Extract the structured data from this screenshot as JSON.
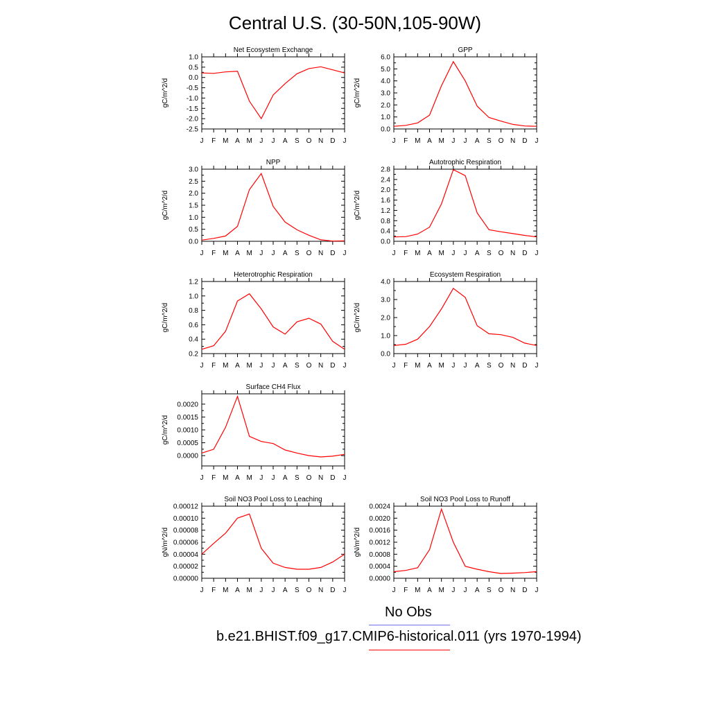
{
  "title": "Central U.S. (30-50N,105-90W)",
  "months": [
    "J",
    "F",
    "M",
    "A",
    "M",
    "J",
    "J",
    "A",
    "S",
    "O",
    "N",
    "D",
    "J"
  ],
  "legend": [
    {
      "label": "No Obs",
      "color": "#6f6ff0"
    },
    {
      "label": "b.e21.BHIST.f09_g17.CMIP6-historical.011 (yrs 1970-1994)",
      "color": "#ff0000"
    }
  ],
  "chart_data": [
    {
      "type": "line",
      "title": "Net Ecosystem Exchange",
      "ylabel": "gC/m^2/d",
      "ylim": [
        -2.5,
        1.0
      ],
      "yticks": [
        "1.0",
        "0.5",
        "0.0",
        "-0.5",
        "-1.0",
        "-1.5",
        "-2.0",
        "-2.5"
      ],
      "series": [
        {
          "color": "#ff0000",
          "values": [
            0.22,
            0.2,
            0.27,
            0.3,
            -1.15,
            -2.0,
            -0.85,
            -0.3,
            0.18,
            0.43,
            0.52,
            0.37,
            0.22
          ]
        }
      ]
    },
    {
      "type": "line",
      "title": "GPP",
      "ylabel": "gC/m^2/d",
      "ylim": [
        0,
        6.0
      ],
      "yticks": [
        "6.0",
        "5.0",
        "4.0",
        "3.0",
        "2.0",
        "1.0",
        "0.0"
      ],
      "series": [
        {
          "color": "#ff0000",
          "values": [
            0.22,
            0.3,
            0.5,
            1.15,
            3.6,
            5.6,
            4.0,
            1.9,
            0.95,
            0.65,
            0.38,
            0.25,
            0.22
          ]
        }
      ]
    },
    {
      "type": "line",
      "title": "NPP",
      "ylabel": "gC/m^2/d",
      "ylim": [
        0,
        3.0
      ],
      "yticks": [
        "3.0",
        "2.5",
        "2.0",
        "1.5",
        "1.0",
        "0.5",
        "0.0"
      ],
      "series": [
        {
          "color": "#ff0000",
          "values": [
            0.05,
            0.12,
            0.22,
            0.62,
            2.15,
            2.82,
            1.45,
            0.8,
            0.48,
            0.25,
            0.06,
            0.01,
            0.02
          ]
        }
      ]
    },
    {
      "type": "line",
      "title": "Autotrophic Respiration",
      "ylabel": "gC/m^2/d",
      "ylim": [
        0,
        2.8
      ],
      "yticks": [
        "2.8",
        "2.4",
        "2.0",
        "1.6",
        "1.2",
        "0.8",
        "0.4",
        "0.0"
      ],
      "series": [
        {
          "color": "#ff0000",
          "values": [
            0.17,
            0.18,
            0.28,
            0.55,
            1.45,
            2.78,
            2.55,
            1.1,
            0.45,
            0.37,
            0.3,
            0.23,
            0.17
          ]
        }
      ]
    },
    {
      "type": "line",
      "title": "Heterotrophic Respiration",
      "ylabel": "gC/m^2/d",
      "ylim": [
        0.2,
        1.2
      ],
      "yticks": [
        "1.2",
        "1.0",
        "0.8",
        "0.6",
        "0.4",
        "0.2"
      ],
      "series": [
        {
          "color": "#ff0000",
          "values": [
            0.26,
            0.31,
            0.51,
            0.93,
            1.03,
            0.82,
            0.57,
            0.47,
            0.64,
            0.69,
            0.61,
            0.37,
            0.26
          ]
        }
      ]
    },
    {
      "type": "line",
      "title": "Ecosystem Respiration",
      "ylabel": "gC/m^2/d",
      "ylim": [
        0,
        4.0
      ],
      "yticks": [
        "4.0",
        "3.0",
        "2.0",
        "1.0",
        "0.0"
      ],
      "series": [
        {
          "color": "#ff0000",
          "values": [
            0.45,
            0.52,
            0.8,
            1.5,
            2.48,
            3.62,
            3.12,
            1.55,
            1.1,
            1.05,
            0.9,
            0.58,
            0.45
          ]
        }
      ]
    },
    {
      "type": "line",
      "title": "Surface CH4 Flux",
      "ylabel": "gC/m^2/d",
      "ylim": [
        -0.0004,
        0.0024
      ],
      "yticks": [
        "0.0020",
        "0.0015",
        "0.0010",
        "0.0005",
        "0.0000"
      ],
      "ytick_values": [
        0.002,
        0.0015,
        0.001,
        0.0005,
        0.0
      ],
      "series": [
        {
          "color": "#ff0000",
          "values": [
            0.0001,
            0.00025,
            0.0011,
            0.0023,
            0.00075,
            0.00055,
            0.00047,
            0.00022,
            0.0001,
            0.0,
            -5e-05,
            -2e-05,
            5e-05
          ]
        }
      ]
    },
    {
      "type": "line",
      "title": "Soil NO3 Pool Loss to Leaching",
      "ylabel": "gN/m^2/d",
      "ylim": [
        0,
        0.00012
      ],
      "yticks": [
        "0.00012",
        "0.00010",
        "0.00008",
        "0.00006",
        "0.00004",
        "0.00002",
        "0.00000"
      ],
      "series": [
        {
          "color": "#ff0000",
          "values": [
            4e-05,
            5.8e-05,
            7.5e-05,
            0.0001,
            0.000107,
            5e-05,
            2.5e-05,
            1.8e-05,
            1.5e-05,
            1.5e-05,
            1.8e-05,
            2.7e-05,
            4e-05
          ]
        }
      ]
    },
    {
      "type": "line",
      "title": "Soil NO3 Pool Loss to Runoff",
      "ylabel": "gN/m^2/d",
      "ylim": [
        0,
        0.0024
      ],
      "yticks": [
        "0.0024",
        "0.0020",
        "0.0016",
        "0.0012",
        "0.0008",
        "0.0004",
        "0.0000"
      ],
      "series": [
        {
          "color": "#ff0000",
          "values": [
            0.00022,
            0.00026,
            0.00035,
            0.00095,
            0.0023,
            0.0012,
            0.0004,
            0.0003,
            0.00022,
            0.00016,
            0.00017,
            0.00019,
            0.00022
          ]
        }
      ]
    }
  ]
}
